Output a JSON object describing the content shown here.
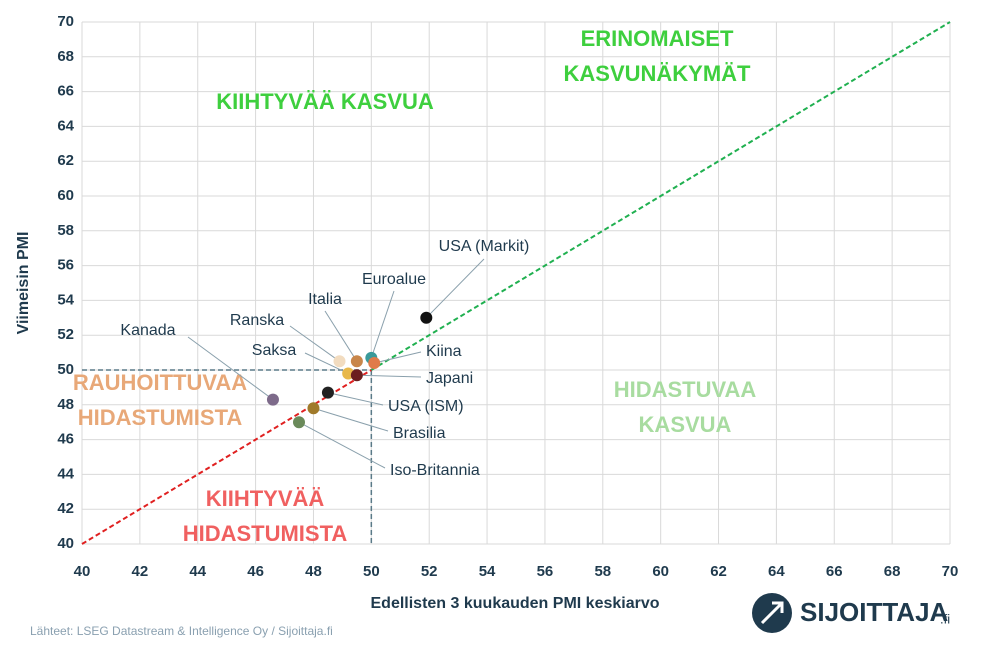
{
  "chart_data": {
    "type": "scatter",
    "x_label": "Edellisten 3 kuukauden PMI keskiarvo",
    "y_label": "Viimeisin PMI",
    "xlim": [
      40,
      70
    ],
    "ylim": [
      40,
      70
    ],
    "xticks": [
      40,
      42,
      44,
      46,
      48,
      50,
      52,
      54,
      56,
      58,
      60,
      62,
      64,
      66,
      68,
      70
    ],
    "yticks": [
      40,
      42,
      44,
      46,
      48,
      50,
      52,
      54,
      56,
      58,
      60,
      62,
      64,
      66,
      68,
      70
    ],
    "grid": true,
    "threshold": 50,
    "points": [
      {
        "label": "USA (Markit)",
        "x": 51.9,
        "y": 53.0,
        "color": "#111111"
      },
      {
        "label": "Euroalue",
        "x": 50.0,
        "y": 50.7,
        "color": "#3a9a9a"
      },
      {
        "label": "Italia",
        "x": 49.5,
        "y": 50.5,
        "color": "#c8864a"
      },
      {
        "label": "Ranska",
        "x": 48.9,
        "y": 50.5,
        "color": "#f2dcc0"
      },
      {
        "label": "Kanada",
        "x": 46.6,
        "y": 48.3,
        "color": "#7d6a8a"
      },
      {
        "label": "Saksa",
        "x": 49.2,
        "y": 49.8,
        "color": "#e8b84a"
      },
      {
        "label": "Kiina",
        "x": 50.1,
        "y": 50.4,
        "color": "#e07b4a"
      },
      {
        "label": "Japani",
        "x": 49.5,
        "y": 49.7,
        "color": "#6b1f1f"
      },
      {
        "label": "USA (ISM)",
        "x": 48.5,
        "y": 48.7,
        "color": "#222222"
      },
      {
        "label": "Brasilia",
        "x": 48.0,
        "y": 47.8,
        "color": "#a07a2a"
      },
      {
        "label": "Iso-Britannia",
        "x": 47.5,
        "y": 47.0,
        "color": "#6a8a5a"
      }
    ],
    "regions": [
      {
        "lines": [
          "KIIHTYVÄÄ KASVUA"
        ],
        "color": "#3ecf3e"
      },
      {
        "lines": [
          "ERINOMAISET",
          "KASVUNÄKYMÄT"
        ],
        "color": "#3ecf3e"
      },
      {
        "lines": [
          "RAUHOITTUVAA",
          "HIDASTUMISTA"
        ],
        "color": "#e8a878"
      },
      {
        "lines": [
          "HIDASTUVAA",
          "KASVUA"
        ],
        "color": "#a8dca0"
      },
      {
        "lines": [
          "KIIHTYVÄÄ",
          "HIDASTUMISTA"
        ],
        "color": "#f06060"
      }
    ],
    "source": "Lähteet: LSEG Datastream & Intelligence Oy / Sijoittaja.fi",
    "brand": "SIJOITTAJA",
    "brand_suffix": ".fi"
  }
}
